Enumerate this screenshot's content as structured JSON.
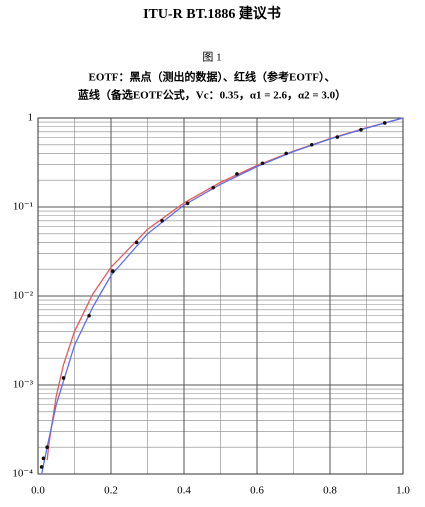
{
  "header": "ITU-R  BT.1886 建议书",
  "figure_label": "图 1",
  "chart_data": {
    "type": "line",
    "title": [
      "EOTF：黑点（测出的数据）、红线（参考EOTF）、",
      "蓝线（备选EOTF公式，Vc：0.35，α1 = 2.6，α2 = 3.0）"
    ],
    "log_y": true,
    "grid": true,
    "xlim": [
      0,
      1
    ],
    "ylim": [
      0.0001,
      1
    ],
    "xticks": [
      {
        "value": 0,
        "label": "0.0"
      },
      {
        "value": 0.2,
        "label": "0.2"
      },
      {
        "value": 0.4,
        "label": "0.4"
      },
      {
        "value": 0.6,
        "label": "0.6"
      },
      {
        "value": 0.8,
        "label": "0.8"
      },
      {
        "value": 1,
        "label": "1.0"
      }
    ],
    "yticks": [
      {
        "value": 0.0001,
        "label": "10⁻⁴"
      },
      {
        "value": 0.001,
        "label": "10⁻³"
      },
      {
        "value": 0.01,
        "label": "10⁻²"
      },
      {
        "value": 0.1,
        "label": "10⁻¹"
      },
      1
    ],
    "xminorticks": [
      0.1,
      0.3,
      0.5,
      0.7,
      0.9
    ],
    "yminorticks": [
      0.0002,
      0.0003,
      0.0004,
      0.0005,
      0.0006,
      0.0007,
      0.0008,
      0.0009,
      0.002,
      0.003,
      0.004,
      0.005,
      0.006,
      0.007,
      0.008,
      0.009,
      0.02,
      0.03,
      0.04,
      0.05,
      0.06,
      0.07,
      0.08,
      0.09,
      0.2,
      0.3,
      0.4,
      0.5,
      0.6,
      0.7,
      0.8,
      0.9
    ],
    "series": [
      {
        "style": "line",
        "color": "#e8595f",
        "x": [
          0.025,
          0.03,
          0.05,
          0.07,
          0.1,
          0.15,
          0.2,
          0.3,
          0.4,
          0.5,
          0.6,
          0.7,
          0.8,
          0.9,
          1
        ],
        "values": [
          0.000143,
          0.00022,
          0.00075,
          0.0017,
          0.004,
          0.0105,
          0.021,
          0.056,
          0.111,
          0.189,
          0.293,
          0.425,
          0.586,
          0.776,
          1
        ]
      },
      {
        "style": "line",
        "color": "#5b6fe8",
        "x": [
          0.01,
          0.025,
          0.05,
          0.1,
          0.15,
          0.2,
          0.3,
          0.4,
          0.5,
          0.6,
          0.7,
          0.8,
          0.9,
          1
        ],
        "values": [
          0.0001,
          0.0002,
          0.0006,
          0.0028,
          0.0075,
          0.017,
          0.05,
          0.105,
          0.18,
          0.285,
          0.42,
          0.58,
          0.77,
          1
        ]
      },
      {
        "style": "markers",
        "color": "#111111",
        "x": [
          0.01,
          0.015,
          0.025,
          0.07,
          0.14,
          0.205,
          0.27,
          0.34,
          0.41,
          0.48,
          0.545,
          0.615,
          0.68,
          0.75,
          0.82,
          0.885,
          0.95
        ],
        "values": [
          0.00012,
          0.00015,
          0.0002,
          0.0012,
          0.006,
          0.019,
          0.04,
          0.07,
          0.11,
          0.165,
          0.235,
          0.31,
          0.4,
          0.5,
          0.61,
          0.74,
          0.88
        ]
      }
    ]
  }
}
